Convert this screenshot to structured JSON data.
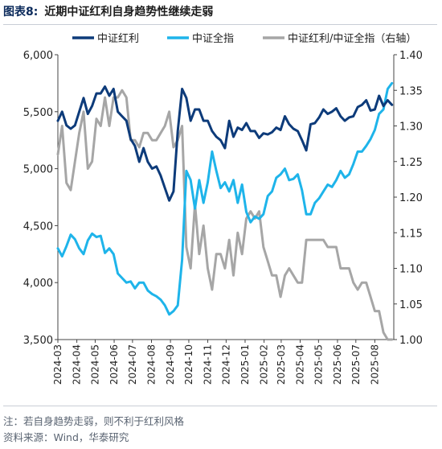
{
  "header": {
    "figure_label": "图表8:",
    "title": "近期中证红利自身趋势性继续走弱"
  },
  "chart_data": {
    "type": "line",
    "series": [
      {
        "name": "中证红利",
        "axis": "left",
        "color": "#0d3b7a",
        "x": [
          "2024-03-01",
          "2024-03-08",
          "2024-03-15",
          "2024-03-22",
          "2024-03-29",
          "2024-04-05",
          "2024-04-12",
          "2024-04-19",
          "2024-04-26",
          "2024-05-03",
          "2024-05-10",
          "2024-05-17",
          "2024-05-24",
          "2024-05-31",
          "2024-06-07",
          "2024-06-14",
          "2024-06-21",
          "2024-06-28",
          "2024-07-05",
          "2024-07-12",
          "2024-07-19",
          "2024-07-26",
          "2024-08-02",
          "2024-08-09",
          "2024-08-16",
          "2024-08-23",
          "2024-08-30",
          "2024-09-06",
          "2024-09-13",
          "2024-09-20",
          "2024-09-27",
          "2024-10-04",
          "2024-10-11",
          "2024-10-18",
          "2024-10-25",
          "2024-11-01",
          "2024-11-08",
          "2024-11-15",
          "2024-11-22",
          "2024-11-29",
          "2024-12-06",
          "2024-12-13",
          "2024-12-20",
          "2024-12-27",
          "2025-01-03",
          "2025-01-10",
          "2025-01-17",
          "2025-01-24",
          "2025-01-31",
          "2025-02-07",
          "2025-02-14",
          "2025-02-21",
          "2025-02-28",
          "2025-03-07",
          "2025-03-14",
          "2025-03-21",
          "2025-03-28",
          "2025-04-04",
          "2025-04-11",
          "2025-04-18",
          "2025-04-25",
          "2025-05-02",
          "2025-05-09",
          "2025-05-16",
          "2025-05-23",
          "2025-05-30",
          "2025-06-06",
          "2025-06-13",
          "2025-06-20",
          "2025-06-27",
          "2025-07-04",
          "2025-07-11",
          "2025-07-18",
          "2025-07-25",
          "2025-08-01",
          "2025-08-08",
          "2025-08-15",
          "2025-08-22",
          "2025-08-29"
        ],
        "values": [
          5420,
          5500,
          5380,
          5350,
          5380,
          5500,
          5620,
          5480,
          5550,
          5660,
          5660,
          5720,
          5640,
          5700,
          5500,
          5460,
          5420,
          5260,
          5200,
          5060,
          5180,
          5060,
          5000,
          5020,
          4940,
          4830,
          4720,
          4800,
          5330,
          5700,
          5620,
          5420,
          5520,
          5520,
          5420,
          5420,
          5330,
          5280,
          5250,
          5180,
          5420,
          5280,
          5360,
          5340,
          5400,
          5330,
          5330,
          5270,
          5310,
          5300,
          5320,
          5360,
          5340,
          5460,
          5390,
          5350,
          5330,
          5250,
          5160,
          5390,
          5400,
          5450,
          5520,
          5480,
          5500,
          5530,
          5460,
          5420,
          5450,
          5460,
          5540,
          5560,
          5600,
          5510,
          5520,
          5640,
          5550,
          5600,
          5560
        ]
      },
      {
        "name": "中证全指",
        "axis": "left",
        "color": "#1eb4ea",
        "x": [
          "2024-03-01",
          "2024-03-08",
          "2024-03-15",
          "2024-03-22",
          "2024-03-29",
          "2024-04-05",
          "2024-04-12",
          "2024-04-19",
          "2024-04-26",
          "2024-05-03",
          "2024-05-10",
          "2024-05-17",
          "2024-05-24",
          "2024-05-31",
          "2024-06-07",
          "2024-06-14",
          "2024-06-21",
          "2024-06-28",
          "2024-07-05",
          "2024-07-12",
          "2024-07-19",
          "2024-07-26",
          "2024-08-02",
          "2024-08-09",
          "2024-08-16",
          "2024-08-23",
          "2024-08-30",
          "2024-09-06",
          "2024-09-13",
          "2024-09-20",
          "2024-09-27",
          "2024-10-04",
          "2024-10-11",
          "2024-10-18",
          "2024-10-25",
          "2024-11-01",
          "2024-11-08",
          "2024-11-15",
          "2024-11-22",
          "2024-11-29",
          "2024-12-06",
          "2024-12-13",
          "2024-12-20",
          "2024-12-27",
          "2025-01-03",
          "2025-01-10",
          "2025-01-17",
          "2025-01-24",
          "2025-01-31",
          "2025-02-07",
          "2025-02-14",
          "2025-02-21",
          "2025-02-28",
          "2025-03-07",
          "2025-03-14",
          "2025-03-21",
          "2025-03-28",
          "2025-04-04",
          "2025-04-11",
          "2025-04-18",
          "2025-04-25",
          "2025-05-02",
          "2025-05-09",
          "2025-05-16",
          "2025-05-23",
          "2025-05-30",
          "2025-06-06",
          "2025-06-13",
          "2025-06-20",
          "2025-06-27",
          "2025-07-04",
          "2025-07-11",
          "2025-07-18",
          "2025-07-25",
          "2025-08-01",
          "2025-08-08",
          "2025-08-15",
          "2025-08-22",
          "2025-08-29"
        ],
        "values": [
          4300,
          4230,
          4320,
          4420,
          4380,
          4300,
          4250,
          4370,
          4430,
          4400,
          4410,
          4260,
          4300,
          4250,
          4080,
          4040,
          4000,
          4010,
          3950,
          4000,
          4000,
          3930,
          3900,
          3880,
          3850,
          3800,
          3720,
          3750,
          3800,
          4200,
          4980,
          4900,
          4650,
          4900,
          4700,
          4880,
          5150,
          4980,
          4830,
          4880,
          4800,
          4900,
          4700,
          4860,
          4620,
          4530,
          4580,
          4560,
          4600,
          4760,
          4800,
          4920,
          4950,
          5000,
          4900,
          4910,
          4950,
          4810,
          4600,
          4600,
          4700,
          4740,
          4800,
          4860,
          4840,
          4900,
          4980,
          4920,
          4950,
          5040,
          5150,
          5150,
          5200,
          5260,
          5340,
          5480,
          5520,
          5700,
          5750
        ]
      },
      {
        "name": "中证红利/中证全指（右轴）",
        "axis": "right",
        "color": "#a6a6a6",
        "x": [
          "2024-03-01",
          "2024-03-08",
          "2024-03-15",
          "2024-03-22",
          "2024-03-29",
          "2024-04-05",
          "2024-04-12",
          "2024-04-19",
          "2024-04-26",
          "2024-05-03",
          "2024-05-10",
          "2024-05-17",
          "2024-05-24",
          "2024-05-31",
          "2024-06-07",
          "2024-06-14",
          "2024-06-21",
          "2024-06-28",
          "2024-07-05",
          "2024-07-12",
          "2024-07-19",
          "2024-07-26",
          "2024-08-02",
          "2024-08-09",
          "2024-08-16",
          "2024-08-23",
          "2024-08-30",
          "2024-09-06",
          "2024-09-13",
          "2024-09-20",
          "2024-09-27",
          "2024-10-04",
          "2024-10-11",
          "2024-10-18",
          "2024-10-25",
          "2024-11-01",
          "2024-11-08",
          "2024-11-15",
          "2024-11-22",
          "2024-11-29",
          "2024-12-06",
          "2024-12-13",
          "2024-12-20",
          "2024-12-27",
          "2025-01-03",
          "2025-01-10",
          "2025-01-17",
          "2025-01-24",
          "2025-01-31",
          "2025-02-07",
          "2025-02-14",
          "2025-02-21",
          "2025-02-28",
          "2025-03-07",
          "2025-03-14",
          "2025-03-21",
          "2025-03-28",
          "2025-04-04",
          "2025-04-11",
          "2025-04-18",
          "2025-04-25",
          "2025-05-02",
          "2025-05-09",
          "2025-05-16",
          "2025-05-23",
          "2025-05-30",
          "2025-06-06",
          "2025-06-13",
          "2025-06-20",
          "2025-06-27",
          "2025-07-04",
          "2025-07-11",
          "2025-07-18",
          "2025-07-25",
          "2025-08-01",
          "2025-08-08",
          "2025-08-15",
          "2025-08-22",
          "2025-08-29"
        ],
        "values": [
          1.26,
          1.3,
          1.22,
          1.21,
          1.25,
          1.29,
          1.32,
          1.24,
          1.25,
          1.31,
          1.3,
          1.34,
          1.3,
          1.34,
          1.34,
          1.35,
          1.34,
          1.28,
          1.28,
          1.27,
          1.29,
          1.29,
          1.28,
          1.28,
          1.29,
          1.3,
          1.32,
          1.27,
          1.28,
          1.3,
          1.13,
          1.1,
          1.19,
          1.12,
          1.16,
          1.1,
          1.07,
          1.12,
          1.12,
          1.1,
          1.14,
          1.09,
          1.15,
          1.12,
          1.17,
          1.18,
          1.17,
          1.18,
          1.13,
          1.11,
          1.09,
          1.09,
          1.06,
          1.09,
          1.1,
          1.09,
          1.08,
          1.08,
          1.14,
          1.14,
          1.14,
          1.14,
          1.14,
          1.13,
          1.13,
          1.13,
          1.1,
          1.1,
          1.1,
          1.08,
          1.07,
          1.08,
          1.08,
          1.06,
          1.04,
          1.04,
          1.01,
          1.0,
          1.0
        ]
      }
    ],
    "x_ticks": [
      "2024-03",
      "2024-04",
      "2024-05",
      "2024-06",
      "2024-07",
      "2024-08",
      "2024-09",
      "2024-10",
      "2024-11",
      "2024-12",
      "2025-01",
      "2025-02",
      "2025-03",
      "2025-04",
      "2025-05",
      "2025-06",
      "2025-07",
      "2025-08"
    ],
    "y_left": {
      "range": [
        3500,
        6000
      ],
      "ticks": [
        "3,500",
        "4,000",
        "4,500",
        "5,000",
        "5,500",
        "6,000"
      ],
      "tick_values": [
        3500,
        4000,
        4500,
        5000,
        5500,
        6000
      ]
    },
    "y_right": {
      "range": [
        1.0,
        1.4
      ],
      "ticks": [
        "1.00",
        "1.05",
        "1.10",
        "1.15",
        "1.20",
        "1.25",
        "1.30",
        "1.35",
        "1.40"
      ],
      "tick_values": [
        1.0,
        1.05,
        1.1,
        1.15,
        1.2,
        1.25,
        1.3,
        1.35,
        1.4
      ]
    },
    "x_range": [
      "2024-03-01",
      "2025-09-01"
    ],
    "grid": false,
    "legend": "top"
  },
  "footer": {
    "note": "注：若自身趋势走弱，则不利于红利风格",
    "source": "资料来源：Wind，华泰研究"
  }
}
